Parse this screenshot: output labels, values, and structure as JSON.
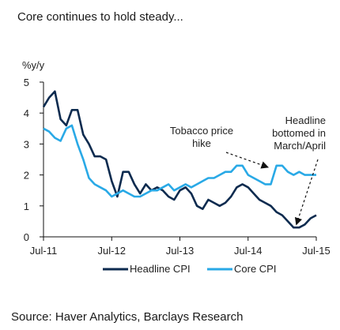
{
  "header": {
    "title": "Core continues to hold steady..."
  },
  "footer": {
    "source": "Source: Haver Analytics, Barclays Research"
  },
  "colors": {
    "headline": "#0d2b4f",
    "core": "#29a9e6"
  },
  "chart_data": {
    "type": "line",
    "ylabel": "%y/y",
    "ylim": [
      0,
      5
    ],
    "yticks": [
      0,
      1,
      2,
      3,
      4,
      5
    ],
    "xlim": [
      0,
      48
    ],
    "xticks": [
      {
        "x": 0,
        "label": "Jul-11"
      },
      {
        "x": 12,
        "label": "Jul-12"
      },
      {
        "x": 24,
        "label": "Jul-13"
      },
      {
        "x": 36,
        "label": "Jul-14"
      },
      {
        "x": 48,
        "label": "Jul-15"
      }
    ],
    "x": [
      0,
      1,
      2,
      3,
      4,
      5,
      6,
      7,
      8,
      9,
      10,
      11,
      12,
      13,
      14,
      15,
      16,
      17,
      18,
      19,
      20,
      21,
      22,
      23,
      24,
      25,
      26,
      27,
      28,
      29,
      30,
      31,
      32,
      33,
      34,
      35,
      36,
      37,
      38,
      39,
      40,
      41,
      42,
      43,
      44,
      45,
      46,
      47,
      48
    ],
    "series": [
      {
        "name": "Headline CPI",
        "key": "headline",
        "values": [
          4.2,
          4.5,
          4.7,
          3.8,
          3.6,
          4.1,
          4.1,
          3.3,
          3.0,
          2.6,
          2.6,
          2.5,
          1.8,
          1.3,
          2.1,
          2.1,
          1.7,
          1.4,
          1.7,
          1.5,
          1.6,
          1.5,
          1.3,
          1.2,
          1.5,
          1.6,
          1.4,
          1.0,
          0.9,
          1.2,
          1.1,
          1.0,
          1.1,
          1.3,
          1.6,
          1.7,
          1.6,
          1.4,
          1.2,
          1.1,
          1.0,
          0.8,
          0.7,
          0.5,
          0.3,
          0.3,
          0.4,
          0.6,
          0.7
        ]
      },
      {
        "name": "Core CPI",
        "key": "core",
        "values": [
          3.5,
          3.4,
          3.2,
          3.1,
          3.5,
          3.6,
          3.0,
          2.5,
          1.9,
          1.7,
          1.6,
          1.5,
          1.3,
          1.4,
          1.5,
          1.4,
          1.3,
          1.3,
          1.4,
          1.5,
          1.5,
          1.6,
          1.7,
          1.5,
          1.6,
          1.7,
          1.6,
          1.7,
          1.8,
          1.9,
          1.9,
          2.0,
          2.1,
          2.1,
          2.3,
          2.3,
          2.0,
          1.9,
          1.8,
          1.7,
          1.7,
          2.3,
          2.3,
          2.1,
          2.0,
          2.1,
          2.0,
          2.0,
          2.0
        ]
      }
    ],
    "annotations": [
      {
        "lines": [
          "Tobacco price",
          "hike"
        ],
        "arrow_to": {
          "x": 39.5,
          "y": 2.25
        }
      },
      {
        "lines": [
          "Headline",
          "bottomed in",
          "March/April"
        ],
        "arrow_to": {
          "x": 44.5,
          "y": 0.4
        }
      }
    ]
  }
}
